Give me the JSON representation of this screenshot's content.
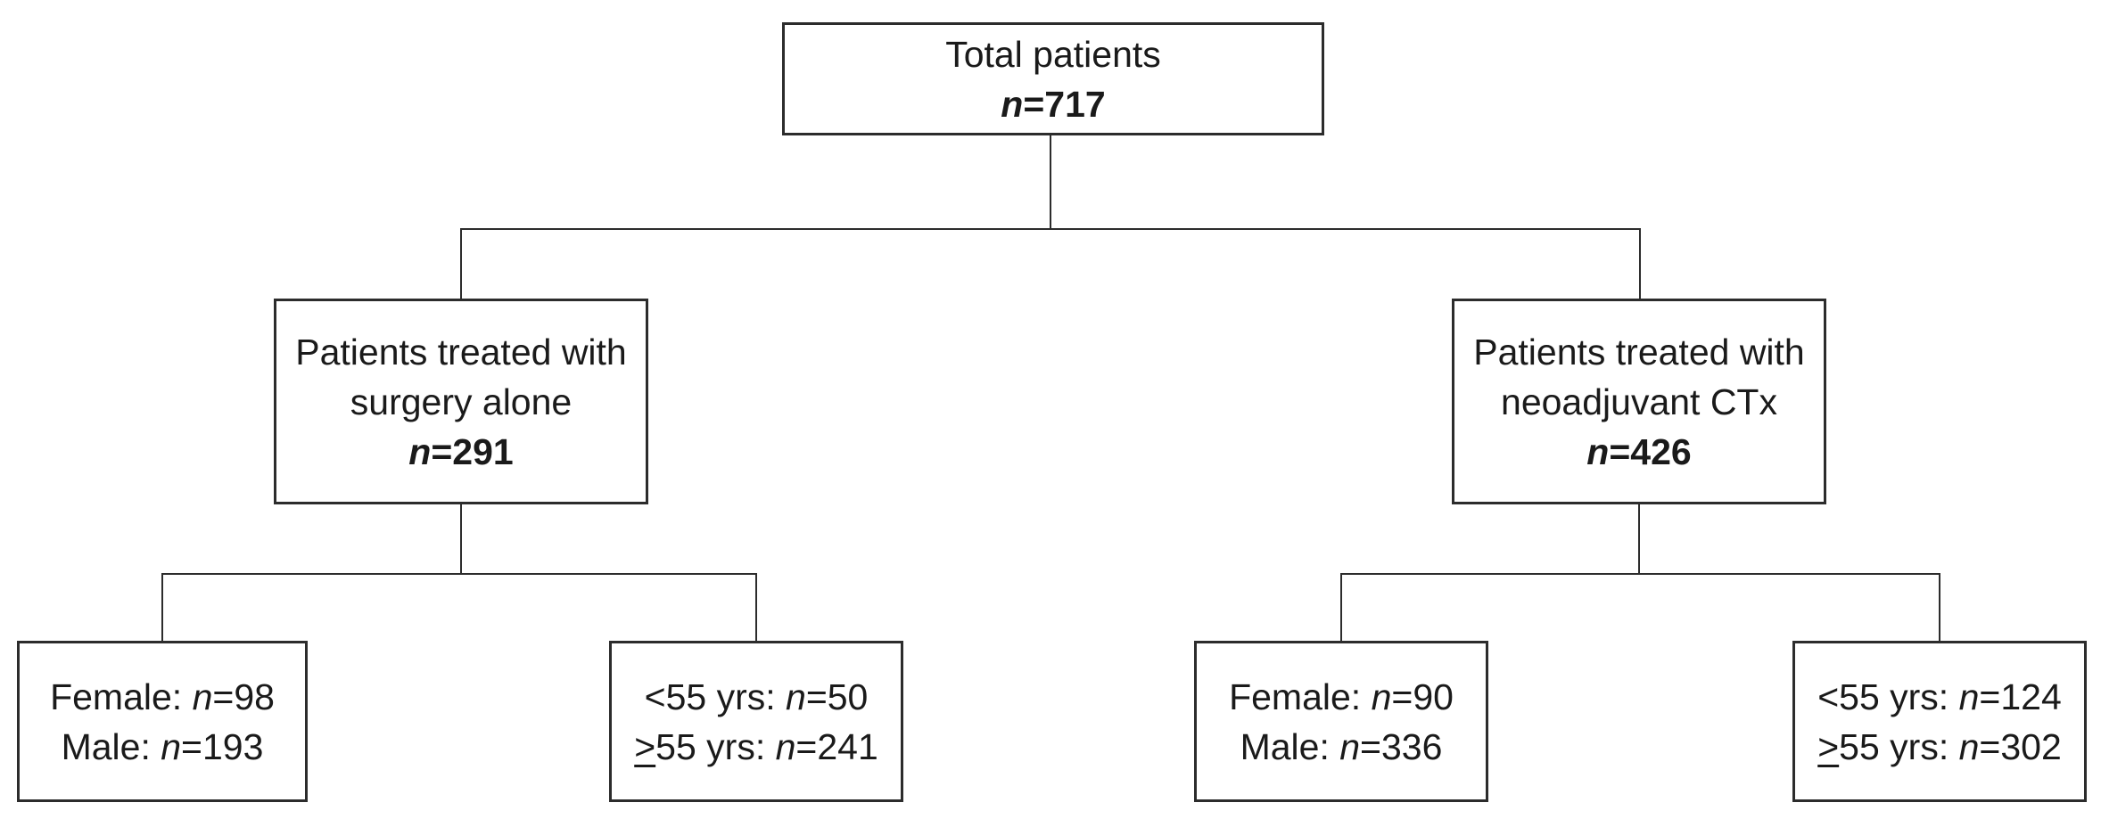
{
  "colors": {
    "background": "#ffffff",
    "line": "#2c2c2c",
    "text": "#1a1a1a"
  },
  "nodes": {
    "total": {
      "label": "Total patients",
      "n_symbol": "n",
      "n_value": "=717"
    },
    "surgery": {
      "label_line1": "Patients treated with",
      "label_line2": "surgery alone",
      "n_symbol": "n",
      "n_value": "=291"
    },
    "neoadjuvant": {
      "label_line1": "Patients treated with",
      "label_line2": "neoadjuvant CTx",
      "n_symbol": "n",
      "n_value": "=426"
    },
    "surgery_sex": {
      "row1": {
        "label": "Female: ",
        "n_symbol": "n",
        "n_value": "=98"
      },
      "row2": {
        "label": "Male: ",
        "n_symbol": "n",
        "n_value": "=193"
      }
    },
    "surgery_age": {
      "row1": {
        "label": "<55 yrs: ",
        "n_symbol": "n",
        "n_value": "=50"
      },
      "row2": {
        "ge_symbol": ">",
        "label": "55 yrs: ",
        "n_symbol": "n",
        "n_value": "=241"
      }
    },
    "neoadjuvant_sex": {
      "row1": {
        "label": "Female: ",
        "n_symbol": "n",
        "n_value": "=90"
      },
      "row2": {
        "label": "Male: ",
        "n_symbol": "n",
        "n_value": "=336"
      }
    },
    "neoadjuvant_age": {
      "row1": {
        "label": "<55 yrs: ",
        "n_symbol": "n",
        "n_value": "=124"
      },
      "row2": {
        "ge_symbol": ">",
        "label": "55 yrs: ",
        "n_symbol": "n",
        "n_value": "=302"
      }
    }
  }
}
